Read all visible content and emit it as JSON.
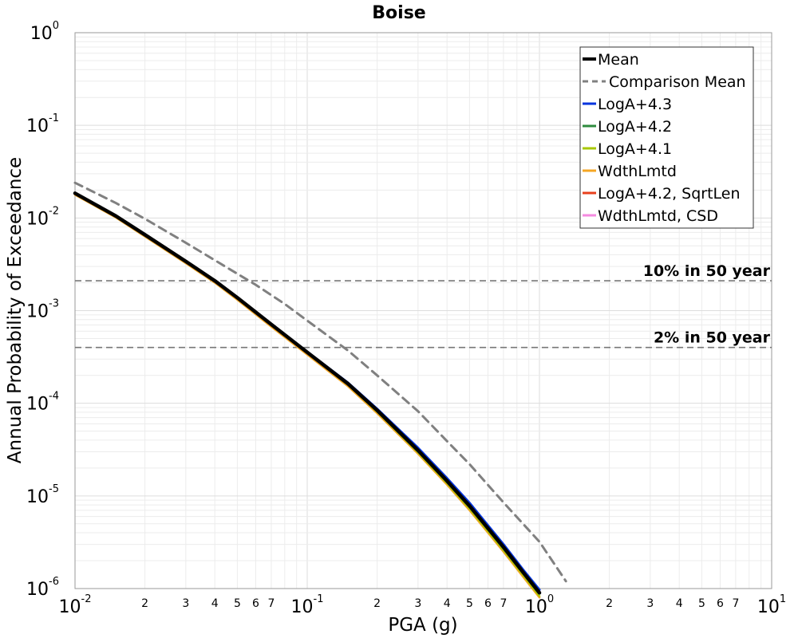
{
  "chart_data": {
    "type": "line",
    "title": "Boise",
    "xlabel": "PGA (g)",
    "ylabel": "Annual Probability of Exceedance",
    "xscale": "log",
    "yscale": "log",
    "xlim": [
      0.01,
      10
    ],
    "ylim": [
      1e-06,
      1
    ],
    "grid": true,
    "legend_position": "top-right",
    "x_major_ticks": [
      {
        "base": "10",
        "exp": "-2"
      },
      {
        "base": "10",
        "exp": "-1"
      },
      {
        "base": "10",
        "exp": "0"
      },
      {
        "base": "10",
        "exp": "1"
      }
    ],
    "y_major_ticks": [
      {
        "base": "10",
        "exp": "0"
      },
      {
        "base": "10",
        "exp": "-1"
      },
      {
        "base": "10",
        "exp": "-2"
      },
      {
        "base": "10",
        "exp": "-3"
      },
      {
        "base": "10",
        "exp": "-4"
      },
      {
        "base": "10",
        "exp": "-5"
      },
      {
        "base": "10",
        "exp": "-6"
      }
    ],
    "x_minor_tick_labels": [
      "2",
      "3",
      "4",
      "5",
      "6",
      "7"
    ],
    "reference_lines": [
      {
        "label": "10% in 50 year",
        "y": 0.0021
      },
      {
        "label": "2% in 50 year",
        "y": 0.0004
      }
    ],
    "series": [
      {
        "name": "Mean",
        "color": "#000000",
        "style": "solid",
        "x": [
          0.01,
          0.015,
          0.02,
          0.03,
          0.04,
          0.05,
          0.07,
          0.1,
          0.15,
          0.2,
          0.3,
          0.4,
          0.5,
          0.7,
          0.85,
          1.0
        ],
        "y": [
          0.0185,
          0.0105,
          0.0066,
          0.0034,
          0.0021,
          0.00138,
          0.00071,
          0.000355,
          0.000162,
          8.4e-05,
          3.1e-05,
          1.45e-05,
          7.8e-06,
          2.8e-06,
          1.5e-06,
          9e-07
        ]
      },
      {
        "name": "Comparison Mean",
        "color": "#808080",
        "style": "dashed",
        "x": [
          0.01,
          0.015,
          0.02,
          0.03,
          0.04,
          0.06,
          0.08,
          0.1,
          0.15,
          0.2,
          0.3,
          0.4,
          0.5,
          0.7,
          1.0,
          1.3
        ],
        "y": [
          0.024,
          0.0145,
          0.0098,
          0.0054,
          0.0035,
          0.0019,
          0.00118,
          0.00078,
          0.00037,
          0.0002,
          8.2e-05,
          3.9e-05,
          2.2e-05,
          8.5e-06,
          3.2e-06,
          1.2e-06
        ]
      },
      {
        "name": "LogA+4.3",
        "color": "#0033dd",
        "style": "solid",
        "x": [
          0.01,
          0.015,
          0.02,
          0.03,
          0.04,
          0.05,
          0.07,
          0.1,
          0.15,
          0.2,
          0.3,
          0.4,
          0.5,
          0.7,
          0.85,
          1.0
        ],
        "y": [
          0.0185,
          0.0105,
          0.0066,
          0.0034,
          0.0021,
          0.00139,
          0.00072,
          0.00036,
          0.000166,
          8.7e-05,
          3.3e-05,
          1.55e-05,
          8.4e-06,
          3e-06,
          1.6e-06,
          9.7e-07
        ]
      },
      {
        "name": "LogA+4.2",
        "color": "#2e8b3e",
        "style": "solid",
        "x": [
          0.01,
          0.015,
          0.02,
          0.03,
          0.04,
          0.05,
          0.07,
          0.1,
          0.15,
          0.2,
          0.3,
          0.4,
          0.5,
          0.7,
          0.85,
          1.0
        ],
        "y": [
          0.0185,
          0.0105,
          0.0066,
          0.0034,
          0.0021,
          0.00138,
          0.00071,
          0.000355,
          0.000162,
          8.4e-05,
          3.1e-05,
          1.45e-05,
          7.8e-06,
          2.8e-06,
          1.5e-06,
          9e-07
        ]
      },
      {
        "name": "LogA+4.1",
        "color": "#a8c800",
        "style": "solid",
        "x": [
          0.01,
          0.015,
          0.02,
          0.03,
          0.04,
          0.05,
          0.07,
          0.1,
          0.15,
          0.2,
          0.3,
          0.4,
          0.5,
          0.7,
          0.85,
          1.0
        ],
        "y": [
          0.0184,
          0.0104,
          0.0065,
          0.00335,
          0.00207,
          0.00136,
          0.0007,
          0.00035,
          0.000158,
          8.1e-05,
          2.95e-05,
          1.37e-05,
          7.3e-06,
          2.6e-06,
          1.4e-06,
          8.3e-07
        ]
      },
      {
        "name": "WdthLmtd",
        "color": "#f5a623",
        "style": "solid",
        "x": [
          0.01,
          0.015,
          0.02,
          0.03,
          0.04,
          0.05,
          0.07,
          0.1,
          0.15,
          0.2,
          0.3,
          0.4,
          0.5,
          0.7,
          0.85,
          1.0
        ],
        "y": [
          0.0178,
          0.0101,
          0.0063,
          0.00325,
          0.002,
          0.00131,
          0.00067,
          0.000335,
          0.000152,
          7.8e-05,
          2.85e-05,
          1.32e-05,
          7e-06,
          2.5e-06,
          1.34e-06,
          8e-07
        ]
      },
      {
        "name": "LogA+4.2, SqrtLen",
        "color": "#e8401c",
        "style": "solid",
        "x": [
          0.01,
          0.015,
          0.02,
          0.03,
          0.04,
          0.05,
          0.07,
          0.1,
          0.15,
          0.2,
          0.3,
          0.4,
          0.5,
          0.7,
          0.85,
          1.0
        ],
        "y": [
          0.0186,
          0.0106,
          0.0066,
          0.0034,
          0.0021,
          0.00139,
          0.00072,
          0.000358,
          0.000164,
          8.5e-05,
          3.15e-05,
          1.48e-05,
          8e-06,
          2.9e-06,
          1.55e-06,
          9.3e-07
        ]
      },
      {
        "name": "WdthLmtd, CSD",
        "color": "#f58ae0",
        "style": "solid",
        "x": [
          0.01,
          0.015,
          0.02,
          0.03,
          0.04,
          0.05,
          0.07,
          0.1,
          0.15,
          0.2,
          0.3,
          0.4,
          0.5,
          0.7,
          0.85,
          1.0
        ],
        "y": [
          0.0179,
          0.0102,
          0.0064,
          0.0033,
          0.00202,
          0.00133,
          0.00068,
          0.00034,
          0.000154,
          7.9e-05,
          2.9e-05,
          1.34e-05,
          7.1e-06,
          2.5e-06,
          1.36e-06,
          8.1e-07
        ]
      }
    ]
  }
}
